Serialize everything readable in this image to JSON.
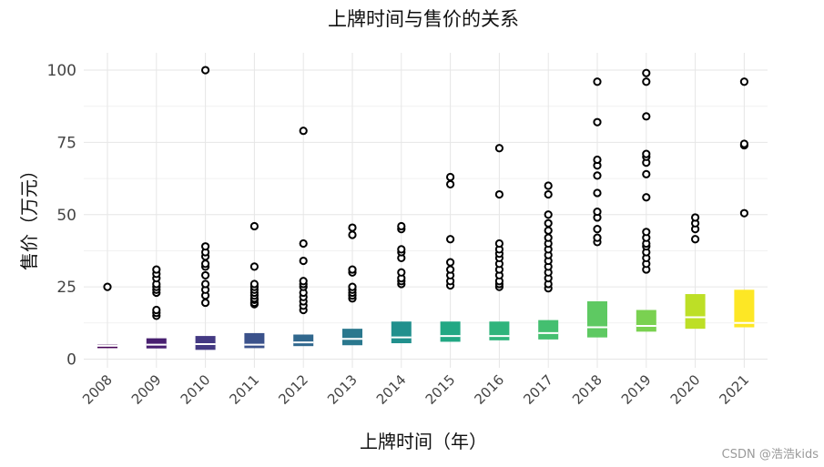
{
  "chart_data": {
    "type": "boxplot",
    "title": "上牌时间与售价的关系",
    "xlabel": "上牌时间（年）",
    "ylabel": "售价（万元）",
    "ylim": [
      -3,
      106
    ],
    "yticks": [
      0,
      25,
      50,
      75,
      100
    ],
    "grid": true,
    "legend": "none",
    "categories": [
      "2008",
      "2009",
      "2010",
      "2011",
      "2012",
      "2013",
      "2014",
      "2015",
      "2016",
      "2017",
      "2018",
      "2019",
      "2020",
      "2021"
    ],
    "boxes": [
      {
        "q1": 3.8,
        "median": 4.6,
        "q3": 5.0,
        "color": "#440154",
        "outliers": [
          25
        ]
      },
      {
        "q1": 3.7,
        "median": 5.0,
        "q3": 7.2,
        "color": "#481F70",
        "outliers": [
          15,
          16,
          17,
          23,
          24,
          25,
          26,
          28,
          29.5,
          31
        ]
      },
      {
        "q1": 3.2,
        "median": 5.2,
        "q3": 8.0,
        "color": "#443A83",
        "outliers": [
          19.5,
          22,
          24,
          26,
          29,
          32,
          33,
          35.5,
          37,
          39,
          100
        ]
      },
      {
        "q1": 3.8,
        "median": 5.0,
        "q3": 9.0,
        "color": "#3B528B",
        "outliers": [
          19,
          19.5,
          20.5,
          21,
          22,
          23,
          24,
          25,
          26,
          32,
          46
        ]
      },
      {
        "q1": 4.5,
        "median": 5.8,
        "q3": 8.5,
        "color": "#31688E",
        "outliers": [
          17,
          18.5,
          20,
          21.5,
          23,
          25,
          26,
          27,
          34,
          40,
          79
        ]
      },
      {
        "q1": 4.8,
        "median": 7.0,
        "q3": 10.5,
        "color": "#2A788E",
        "outliers": [
          21,
          22,
          23,
          24,
          25,
          30,
          31,
          43,
          45.5
        ]
      },
      {
        "q1": 5.5,
        "median": 7.5,
        "q3": 13.0,
        "color": "#21908D",
        "outliers": [
          26,
          27,
          28,
          30,
          35,
          37,
          38,
          45,
          46
        ]
      },
      {
        "q1": 6.0,
        "median": 8.0,
        "q3": 13.0,
        "color": "#22A884",
        "outliers": [
          25.5,
          27,
          29,
          31,
          33.5,
          41.5,
          60.5,
          63
        ]
      },
      {
        "q1": 6.5,
        "median": 8.0,
        "q3": 13.0,
        "color": "#2FB47C",
        "outliers": [
          25,
          26,
          27,
          29,
          31,
          33,
          35,
          36.5,
          38,
          40,
          57,
          73
        ]
      },
      {
        "q1": 6.8,
        "median": 9.0,
        "q3": 13.5,
        "color": "#44BF70",
        "outliers": [
          24.5,
          26,
          28,
          30,
          32,
          34,
          36,
          38,
          40,
          42,
          44.5,
          47,
          50,
          57,
          60
        ]
      },
      {
        "q1": 7.5,
        "median": 11.0,
        "q3": 20.0,
        "color": "#5EC962",
        "outliers": [
          40.5,
          42,
          45,
          49,
          51,
          57.5,
          63.5,
          67,
          69,
          82,
          96
        ]
      },
      {
        "q1": 9.5,
        "median": 11.5,
        "q3": 17.0,
        "color": "#7AD151",
        "outliers": [
          31,
          33,
          35,
          37,
          39,
          40,
          42,
          44,
          56,
          64,
          68,
          70,
          71,
          84,
          96,
          99
        ]
      },
      {
        "q1": 10.5,
        "median": 14.5,
        "q3": 22.5,
        "color": "#BDDF26",
        "outliers": [
          41.5,
          45,
          47,
          49
        ]
      },
      {
        "q1": 11.0,
        "median": 12.5,
        "q3": 24.0,
        "color": "#FDE725",
        "outliers": [
          50.5,
          74,
          74.5,
          96
        ]
      }
    ]
  },
  "watermark": "CSDN @浩浩kids"
}
